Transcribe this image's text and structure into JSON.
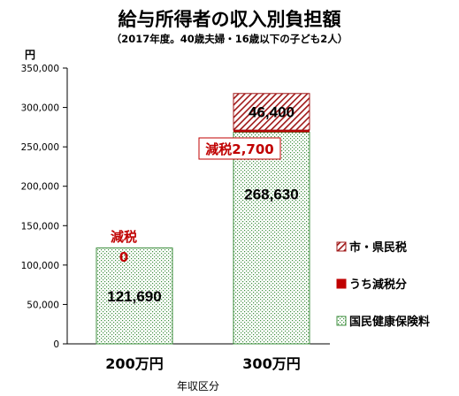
{
  "chart_data": {
    "type": "bar",
    "stacked": true,
    "title": "給与所得者の収入別負担額",
    "subtitle": "（2017年度。40歳夫婦・16歳以下の子ども2人）",
    "ylabel": "円",
    "xlabel": "年収区分",
    "ylim": [
      0,
      350000
    ],
    "yticks": [
      "0",
      "50,000",
      "100,000",
      "150,000",
      "200,000",
      "250,000",
      "300,000",
      "350,000"
    ],
    "grid": false,
    "legend_position": "right",
    "categories": [
      "200万円",
      "300万円"
    ],
    "series": [
      {
        "name": "国民健康保険料",
        "values": [
          121690,
          268630
        ],
        "labels": [
          "121,690",
          "268,630"
        ],
        "color": "#5a9e5a"
      },
      {
        "name": "うち減税分",
        "values": [
          0,
          2700
        ],
        "labels": [
          "",
          ""
        ],
        "color": "#c00000"
      },
      {
        "name": "市・県民税",
        "values": [
          0,
          46400
        ],
        "labels": [
          "",
          "46,400"
        ],
        "color": "#c00000"
      }
    ],
    "annotations": [
      {
        "category": "200万円",
        "text": "減税",
        "value": "0"
      },
      {
        "category": "300万円",
        "text": "減税2,700"
      }
    ]
  }
}
